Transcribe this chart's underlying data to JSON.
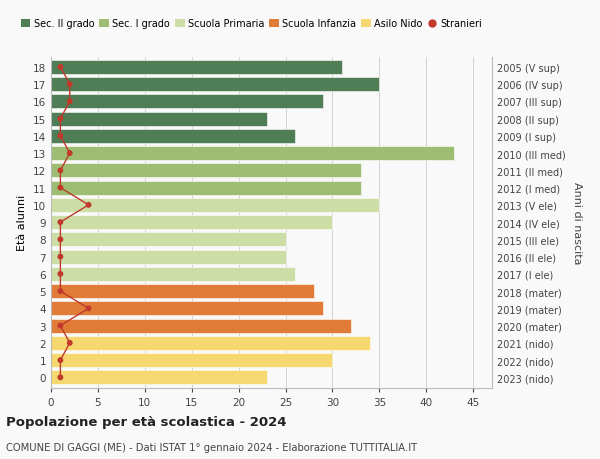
{
  "ages": [
    0,
    1,
    2,
    3,
    4,
    5,
    6,
    7,
    8,
    9,
    10,
    11,
    12,
    13,
    14,
    15,
    16,
    17,
    18
  ],
  "years": [
    "2023 (nido)",
    "2022 (nido)",
    "2021 (nido)",
    "2020 (mater)",
    "2019 (mater)",
    "2018 (mater)",
    "2017 (I ele)",
    "2016 (II ele)",
    "2015 (III ele)",
    "2014 (IV ele)",
    "2013 (V ele)",
    "2012 (I med)",
    "2011 (II med)",
    "2010 (III med)",
    "2009 (I sup)",
    "2008 (II sup)",
    "2007 (III sup)",
    "2006 (IV sup)",
    "2005 (V sup)"
  ],
  "bar_values": [
    23,
    30,
    34,
    32,
    29,
    28,
    26,
    25,
    25,
    30,
    35,
    33,
    33,
    43,
    26,
    23,
    29,
    35,
    31
  ],
  "stranieri": [
    1,
    1,
    2,
    1,
    4,
    1,
    1,
    1,
    1,
    1,
    4,
    1,
    1,
    2,
    1,
    1,
    2,
    2,
    1
  ],
  "bar_colors_by_age": {
    "0": "#f5d870",
    "1": "#f5d870",
    "2": "#f5d870",
    "3": "#e07c38",
    "4": "#e07c38",
    "5": "#e07c38",
    "6": "#ccdea6",
    "7": "#ccdea6",
    "8": "#ccdea6",
    "9": "#ccdea6",
    "10": "#ccdea6",
    "11": "#9dbd73",
    "12": "#9dbd73",
    "13": "#9dbd73",
    "14": "#4e7d56",
    "15": "#4e7d56",
    "16": "#4e7d56",
    "17": "#4e7d56",
    "18": "#4e7d56"
  },
  "legend_colors": {
    "Sec. II grado": "#4e7d56",
    "Sec. I grado": "#9dbd73",
    "Scuola Primaria": "#ccdea6",
    "Scuola Infanzia": "#e07c38",
    "Asilo Nido": "#f5d870",
    "Stranieri": "#c0392b"
  },
  "title_bold": "Popolazione per età scolastica - 2024",
  "subtitle": "COMUNE DI GAGGI (ME) - Dati ISTAT 1° gennaio 2024 - Elaborazione TUTTITALIA.IT",
  "ylabel": "Età alunni",
  "ylabel_right": "Anni di nascita",
  "xlim": [
    0,
    47
  ],
  "xticks": [
    0,
    5,
    10,
    15,
    20,
    25,
    30,
    35,
    40,
    45
  ],
  "background_color": "#f9f9f9",
  "bar_height": 0.82,
  "grid_color": "#cccccc"
}
